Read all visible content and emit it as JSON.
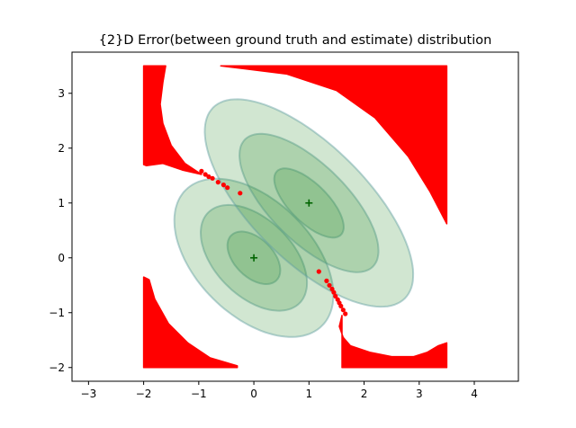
{
  "chart_data": {
    "type": "scatter",
    "title": "{2}D Error(between ground truth and estimate) distribution",
    "xlabel": "",
    "ylabel": "",
    "xlim": [
      -3.3,
      4.8
    ],
    "ylim": [
      -2.25,
      3.75
    ],
    "xticks": [
      -3,
      -2,
      -1,
      0,
      1,
      2,
      3,
      4
    ],
    "yticks": [
      -2,
      -1,
      0,
      1,
      2,
      3
    ],
    "grid": false,
    "colors": {
      "ellipse_fill": "#2e8b2e",
      "ellipse_edge": "#5f9ea0",
      "region": "#ff0000",
      "center_marker": "#006400"
    },
    "centers": [
      {
        "x": 0,
        "y": 0,
        "marker": "+"
      },
      {
        "x": 1,
        "y": 1,
        "marker": "+"
      }
    ],
    "ellipses": [
      {
        "cx": 0,
        "cy": 0,
        "rx": 0.58,
        "ry": 0.35,
        "angle_deg": -45
      },
      {
        "cx": 0,
        "cy": 0,
        "rx": 1.17,
        "ry": 0.7,
        "angle_deg": -45
      },
      {
        "cx": 0,
        "cy": 0,
        "rx": 1.75,
        "ry": 1.05,
        "angle_deg": -45
      },
      {
        "cx": 1,
        "cy": 1,
        "rx": 0.82,
        "ry": 0.35,
        "angle_deg": -45
      },
      {
        "cx": 1,
        "cy": 1,
        "rx": 1.64,
        "ry": 0.7,
        "angle_deg": -45
      },
      {
        "cx": 1,
        "cy": 1,
        "rx": 2.46,
        "ry": 1.05,
        "angle_deg": -45
      }
    ],
    "red_regions": [
      {
        "name": "top-right",
        "points": [
          [
            -0.6,
            3.5
          ],
          [
            3.5,
            3.5
          ],
          [
            3.5,
            0.62
          ],
          [
            3.2,
            1.2
          ],
          [
            2.8,
            1.85
          ],
          [
            2.2,
            2.55
          ],
          [
            1.5,
            3.05
          ],
          [
            0.6,
            3.35
          ],
          [
            -0.2,
            3.45
          ]
        ]
      },
      {
        "name": "top-left",
        "points": [
          [
            -2.0,
            3.5
          ],
          [
            -1.6,
            3.5
          ],
          [
            -1.65,
            3.2
          ],
          [
            -1.7,
            2.8
          ],
          [
            -1.65,
            2.45
          ],
          [
            -1.5,
            2.05
          ],
          [
            -1.25,
            1.72
          ],
          [
            -0.95,
            1.52
          ],
          [
            -1.3,
            1.6
          ],
          [
            -1.65,
            1.72
          ],
          [
            -1.95,
            1.68
          ],
          [
            -2.0,
            1.7
          ]
        ]
      },
      {
        "name": "bottom-left",
        "points": [
          [
            -2.0,
            -0.35
          ],
          [
            -1.9,
            -0.4
          ],
          [
            -1.8,
            -0.75
          ],
          [
            -1.55,
            -1.2
          ],
          [
            -1.2,
            -1.55
          ],
          [
            -0.8,
            -1.82
          ],
          [
            -0.3,
            -1.97
          ],
          [
            -0.3,
            -2.0
          ],
          [
            -2.0,
            -2.0
          ]
        ]
      },
      {
        "name": "bottom-right",
        "points": [
          [
            1.6,
            -2.0
          ],
          [
            3.5,
            -2.0
          ],
          [
            3.5,
            -1.55
          ],
          [
            3.35,
            -1.6
          ],
          [
            3.15,
            -1.72
          ],
          [
            2.9,
            -1.8
          ],
          [
            2.5,
            -1.8
          ],
          [
            2.1,
            -1.72
          ],
          [
            1.75,
            -1.6
          ],
          [
            1.62,
            -1.45
          ],
          [
            1.55,
            -1.25
          ],
          [
            1.6,
            -1.05
          ]
        ]
      }
    ],
    "red_points": [
      [
        -0.95,
        1.58
      ],
      [
        -0.88,
        1.52
      ],
      [
        -0.82,
        1.48
      ],
      [
        -0.75,
        1.45
      ],
      [
        -0.65,
        1.38
      ],
      [
        -0.55,
        1.33
      ],
      [
        -0.48,
        1.28
      ],
      [
        -0.25,
        1.18
      ],
      [
        1.18,
        -0.25
      ],
      [
        1.32,
        -0.42
      ],
      [
        1.37,
        -0.5
      ],
      [
        1.42,
        -0.57
      ],
      [
        1.45,
        -0.63
      ],
      [
        1.48,
        -0.7
      ],
      [
        1.52,
        -0.76
      ],
      [
        1.55,
        -0.82
      ],
      [
        1.58,
        -0.88
      ],
      [
        1.62,
        -0.95
      ],
      [
        1.66,
        -1.02
      ]
    ]
  }
}
